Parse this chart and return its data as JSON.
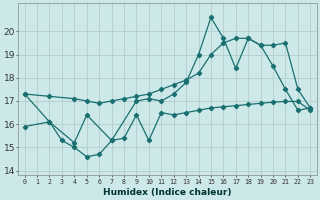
{
  "title": "",
  "xlabel": "Humidex (Indice chaleur)",
  "ylabel": "",
  "background_color": "#cde8e8",
  "grid_color": "#b8d0d0",
  "line_color": "#1a7070",
  "xlim": [
    -0.5,
    23.5
  ],
  "ylim": [
    13.8,
    21.2
  ],
  "yticks": [
    14,
    15,
    16,
    17,
    18,
    19,
    20
  ],
  "xticks": [
    0,
    1,
    2,
    3,
    4,
    5,
    6,
    7,
    8,
    9,
    10,
    11,
    12,
    13,
    14,
    15,
    16,
    17,
    18,
    19,
    20,
    21,
    22,
    23
  ],
  "line1_x": [
    0,
    2,
    4,
    5,
    6,
    7,
    8,
    9,
    10,
    11,
    12,
    13,
    14,
    15,
    16,
    17,
    18,
    19,
    20,
    21,
    22,
    23
  ],
  "line1_y": [
    17.3,
    17.2,
    17.1,
    17.0,
    16.9,
    17.0,
    17.1,
    17.2,
    17.3,
    17.5,
    17.7,
    17.9,
    18.2,
    19.0,
    19.5,
    19.7,
    19.7,
    19.4,
    19.4,
    19.5,
    17.5,
    16.7
  ],
  "line2_x": [
    0,
    2,
    4,
    5,
    7,
    9,
    10,
    11,
    12,
    13,
    14,
    15,
    16,
    17,
    18,
    19,
    20,
    21,
    22,
    23
  ],
  "line2_y": [
    17.3,
    16.1,
    15.2,
    16.4,
    15.3,
    17.0,
    17.1,
    17.0,
    17.3,
    17.8,
    19.0,
    20.6,
    19.7,
    18.4,
    19.7,
    19.4,
    18.5,
    17.5,
    16.6,
    16.7
  ],
  "line3_x": [
    0,
    2,
    3,
    4,
    5,
    6,
    7,
    8,
    9,
    10,
    11,
    12,
    13,
    14,
    15,
    16,
    17,
    18,
    19,
    20,
    21,
    22,
    23
  ],
  "line3_y": [
    15.9,
    16.1,
    15.3,
    15.0,
    14.6,
    14.7,
    15.3,
    15.4,
    16.4,
    15.3,
    16.5,
    16.4,
    16.5,
    16.6,
    16.7,
    16.75,
    16.8,
    16.85,
    16.9,
    16.95,
    16.98,
    16.98,
    16.6
  ]
}
